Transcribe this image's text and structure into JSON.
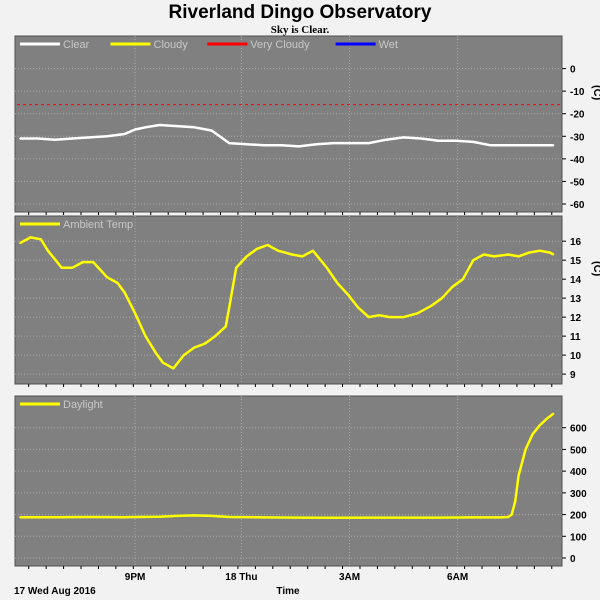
{
  "title": "Riverland Dingo Observatory",
  "subtitle": "Sky is Clear.",
  "x_axis": {
    "title": "Time",
    "start_label": "17 Wed Aug 2016",
    "ticks": [
      "9PM",
      "18 Thu",
      "3AM",
      "6AM"
    ]
  },
  "colors": {
    "panel_bg": "#808080",
    "grid": "#a8a8a8",
    "clear": "#ffffff",
    "cloudy": "#ffff00",
    "very_cloudy": "#ff0000",
    "wet": "#0000ff",
    "legend_text": "#c8c8c8"
  },
  "chart_data": [
    {
      "type": "line",
      "panel": "sky",
      "legend": [
        "Clear",
        "Cloudy",
        "Very Cloudy",
        "Wet"
      ],
      "unit": "C",
      "ylim": [
        -60,
        10
      ],
      "yticks": [
        "0",
        "-10",
        "-20",
        "-30",
        "-40",
        "-50",
        "-60"
      ],
      "threshold": -16,
      "series": [
        {
          "name": "Clear",
          "x_hours": [
            0,
            0.5,
            1,
            1.5,
            2,
            2.5,
            3,
            3.3,
            3.6,
            4,
            4.5,
            5,
            5.5,
            6,
            6.5,
            7,
            7.5,
            8,
            8.5,
            9,
            9.5,
            10,
            10.5,
            11,
            11.5,
            12,
            12.5,
            13,
            13.5,
            14,
            14.5,
            15,
            15.3
          ],
          "values": [
            -31,
            -31,
            -31.5,
            -31,
            -30.5,
            -30,
            -29,
            -27,
            -26,
            -25,
            -25.5,
            -26,
            -27.5,
            -33,
            -33.5,
            -34,
            -34,
            -34.5,
            -33.5,
            -33,
            -33,
            -33,
            -31.5,
            -30.5,
            -31,
            -32,
            -32,
            -32.5,
            -34,
            -34,
            -34,
            -34,
            -34
          ]
        }
      ]
    },
    {
      "type": "line",
      "panel": "ambient",
      "legend": [
        "Ambient Temp"
      ],
      "unit": "C",
      "ylim": [
        8.9,
        16.8
      ],
      "yticks": [
        "16",
        "15",
        "14",
        "13",
        "12",
        "11",
        "10",
        "9"
      ],
      "series": [
        {
          "name": "Ambient Temp",
          "x_hours": [
            0,
            0.3,
            0.6,
            0.8,
            1.2,
            1.5,
            1.8,
            2.1,
            2.5,
            2.8,
            3.0,
            3.3,
            3.6,
            3.9,
            4.1,
            4.4,
            4.7,
            5.0,
            5.3,
            5.6,
            5.9,
            6.0,
            6.2,
            6.5,
            6.8,
            7.1,
            7.4,
            7.8,
            8.1,
            8.4,
            8.8,
            9.1,
            9.4,
            9.7,
            10.0,
            10.3,
            10.6,
            11.0,
            11.4,
            11.8,
            12.1,
            12.4,
            12.7,
            13.0,
            13.3,
            13.6,
            14.0,
            14.3,
            14.6,
            14.9,
            15.2,
            15.3
          ],
          "values": [
            15.9,
            16.2,
            16.1,
            15.5,
            14.6,
            14.6,
            14.9,
            14.9,
            14.1,
            13.8,
            13.3,
            12.2,
            11.0,
            10.1,
            9.6,
            9.3,
            10.0,
            10.4,
            10.6,
            11.0,
            11.5,
            12.5,
            14.6,
            15.2,
            15.6,
            15.8,
            15.5,
            15.3,
            15.2,
            15.5,
            14.6,
            13.8,
            13.2,
            12.5,
            12.0,
            12.1,
            12.0,
            12.0,
            12.2,
            12.6,
            13.0,
            13.6,
            14.0,
            15.0,
            15.3,
            15.2,
            15.3,
            15.2,
            15.4,
            15.5,
            15.4,
            15.3
          ]
        }
      ]
    },
    {
      "type": "line",
      "panel": "daylight",
      "legend": [
        "Daylight"
      ],
      "unit": "",
      "ylim": [
        0,
        700
      ],
      "yticks": [
        "600",
        "500",
        "400",
        "300",
        "200",
        "100",
        "0"
      ],
      "series": [
        {
          "name": "Daylight",
          "x_hours": [
            0,
            1,
            2,
            3,
            4,
            4.5,
            5,
            5.5,
            6,
            7,
            8,
            9,
            10,
            11,
            12,
            13,
            13.8,
            14.0,
            14.1,
            14.2,
            14.3,
            14.5,
            14.7,
            14.9,
            15.1,
            15.3
          ],
          "values": [
            188,
            188,
            189,
            188,
            190,
            194,
            196,
            194,
            189,
            187,
            186,
            185,
            186,
            186,
            186,
            187,
            187,
            189,
            200,
            260,
            380,
            500,
            570,
            610,
            640,
            665
          ]
        }
      ]
    }
  ]
}
